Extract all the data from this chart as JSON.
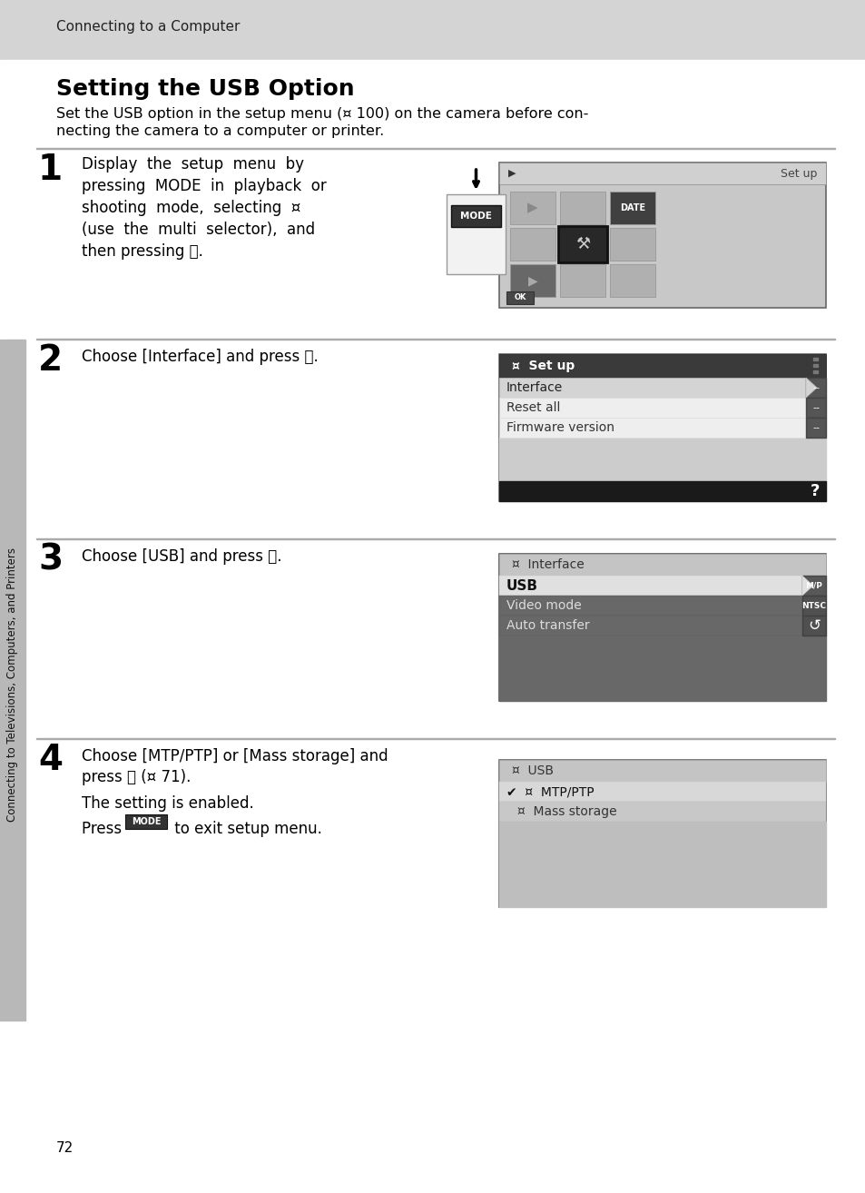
{
  "bg_color": "#ffffff",
  "header_bg": "#d0d0d0",
  "header_text": "Connecting to a Computer",
  "title": "Setting the USB Option",
  "intro_line1": "Set the USB option in the setup menu (¤ 100) on the camera before con-",
  "intro_line2": "necting the camera to a computer or printer.",
  "step1_num": "1",
  "step2_num": "2",
  "step2_text": "Choose [Interface] and press ⓪.",
  "step3_num": "3",
  "step3_text": "Choose [USB] and press ⓪.",
  "step4_num": "4",
  "step4_line1": "Choose [MTP/PTP] or [Mass storage] and",
  "step4_line2": "press ⓪ (¤ 71).",
  "step4_sub1": "The setting is enabled.",
  "step4_sub2": "Press MODE to exit setup menu.",
  "sidebar_text": "Connecting to Televisions, Computers, and Printers",
  "page_num": "72",
  "white": "#ffffff",
  "header_bg_color": "#d4d4d4"
}
